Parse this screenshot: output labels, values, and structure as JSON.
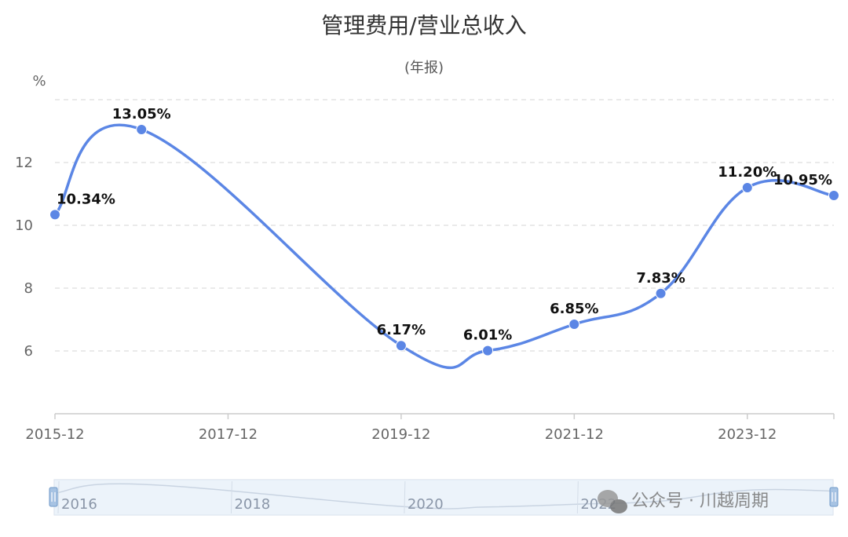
{
  "chart_data": {
    "type": "line",
    "title": "管理费用/营业总收入",
    "subtitle": "(年报)",
    "ylabel": "%",
    "xlabel": "",
    "ylim": [
      4,
      14
    ],
    "yticks": [
      "6",
      "8",
      "10",
      "12"
    ],
    "x": [
      "2015-12",
      "2016-12",
      "2017-12",
      "2018-12",
      "2019-12",
      "2020-12",
      "2021-12",
      "2022-12",
      "2023-12",
      "2024-12"
    ],
    "xtick_labels": [
      "2015-12",
      "2017-12",
      "2019-12",
      "2021-12",
      "2023-12"
    ],
    "series": [
      {
        "values": [
          10.34,
          13.05,
          null,
          null,
          6.17,
          6.01,
          6.85,
          7.83,
          11.2,
          10.95
        ],
        "labels": [
          "10.34%",
          "13.05%",
          "",
          "",
          "6.17%",
          "6.01%",
          "6.85%",
          "7.83%",
          "11.20%",
          "10.95%"
        ]
      }
    ],
    "grid": true,
    "line_color": "#5b86e5",
    "grid_color": "#dddddd"
  },
  "datazoom": {
    "labels": [
      "2016",
      "2018",
      "2020",
      "2022"
    ]
  },
  "watermark": {
    "text": "公众号 · 川越周期",
    "icon": "wechat-icon"
  }
}
